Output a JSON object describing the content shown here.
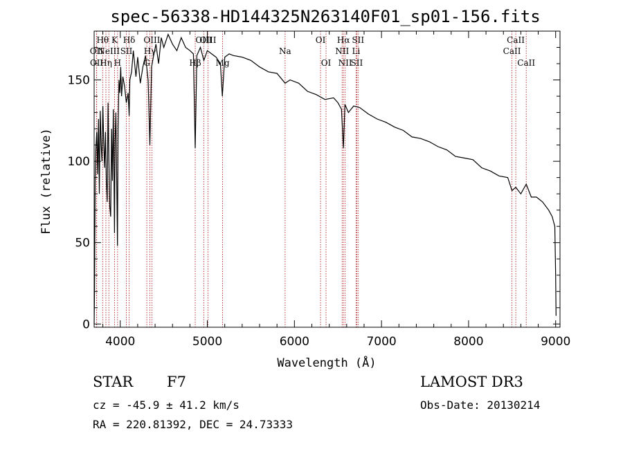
{
  "chart_data": {
    "type": "line",
    "title": "spec-56338-HD144325N263140F01_sp01-156.fits",
    "xlabel": "Wavelength (Å)",
    "ylabel": "Flux (relative)",
    "xlim": [
      3700,
      9050
    ],
    "ylim": [
      -2,
      180
    ],
    "xticks": [
      4000,
      5000,
      6000,
      7000,
      8000,
      9000
    ],
    "yticks": [
      0,
      50,
      100,
      150
    ],
    "series": [
      {
        "name": "flux",
        "x": [
          3700,
          3705,
          3712,
          3720,
          3730,
          3740,
          3750,
          3760,
          3770,
          3780,
          3790,
          3800,
          3810,
          3820,
          3830,
          3840,
          3850,
          3860,
          3870,
          3880,
          3890,
          3900,
          3910,
          3920,
          3930,
          3934,
          3940,
          3950,
          3960,
          3968,
          3975,
          3985,
          3995,
          4005,
          4015,
          4030,
          4050,
          4070,
          4090,
          4102,
          4110,
          4130,
          4150,
          4180,
          4200,
          4230,
          4260,
          4290,
          4320,
          4340,
          4360,
          4380,
          4410,
          4440,
          4470,
          4500,
          4550,
          4600,
          4650,
          4700,
          4750,
          4800,
          4840,
          4861,
          4880,
          4920,
          4960,
          5000,
          5050,
          5100,
          5150,
          5172,
          5200,
          5250,
          5300,
          5400,
          5500,
          5600,
          5700,
          5800,
          5893,
          5950,
          6050,
          6150,
          6250,
          6350,
          6450,
          6500,
          6540,
          6563,
          6580,
          6620,
          6680,
          6750,
          6850,
          6950,
          7050,
          7150,
          7250,
          7350,
          7450,
          7550,
          7650,
          7750,
          7850,
          7950,
          8050,
          8150,
          8250,
          8350,
          8450,
          8498,
          8542,
          8600,
          8662,
          8720,
          8780,
          8850,
          8920,
          8960,
          8990,
          9000,
          9005
        ],
        "y": [
          0,
          22,
          90,
          108,
          118,
          92,
          126,
          80,
          131,
          110,
          100,
          134,
          112,
          96,
          118,
          88,
          75,
          136,
          100,
          72,
          66,
          120,
          88,
          132,
          80,
          56,
          112,
          130,
          86,
          48,
          120,
          150,
          142,
          158,
          140,
          152,
          146,
          136,
          142,
          128,
          150,
          155,
          168,
          152,
          164,
          148,
          158,
          165,
          150,
          110,
          158,
          164,
          172,
          160,
          176,
          170,
          178,
          172,
          168,
          176,
          170,
          168,
          166,
          108,
          165,
          170,
          162,
          168,
          166,
          164,
          160,
          140,
          164,
          166,
          165,
          164,
          162,
          158,
          155,
          154,
          148,
          150,
          148,
          143,
          141,
          138,
          139,
          136,
          132,
          108,
          135,
          130,
          134,
          133,
          129,
          126,
          124,
          121,
          119,
          115,
          114,
          112,
          109,
          107,
          103,
          102,
          101,
          96,
          94,
          91,
          90,
          82,
          84,
          80,
          86,
          78,
          78,
          75,
          70,
          66,
          60,
          30,
          5
        ]
      }
    ],
    "spectral_lines": [
      {
        "label": "Hθ",
        "x": 3798,
        "row": 1
      },
      {
        "label": "OII",
        "x": 3727,
        "row": 2
      },
      {
        "label": "OII",
        "x": 3729,
        "row": 3
      },
      {
        "label": "Hη",
        "x": 3835,
        "row": 3
      },
      {
        "label": "NeIII",
        "x": 3869,
        "row": 2
      },
      {
        "label": "K",
        "x": 3934,
        "row": 1
      },
      {
        "label": "H",
        "x": 3969,
        "row": 3
      },
      {
        "label": "Hδ",
        "x": 4102,
        "row": 1
      },
      {
        "label": "SII",
        "x": 4070,
        "row": 2
      },
      {
        "label": "OIII",
        "x": 4363,
        "row": 1
      },
      {
        "label": "Hγ",
        "x": 4340,
        "row": 2
      },
      {
        "label": "G",
        "x": 4305,
        "row": 3
      },
      {
        "label": "Hβ",
        "x": 4861,
        "row": 3
      },
      {
        "label": "OIII",
        "x": 4959,
        "row": 1
      },
      {
        "label": "OIII",
        "x": 5007,
        "row": 1
      },
      {
        "label": "Mg",
        "x": 5175,
        "row": 3
      },
      {
        "label": "Na",
        "x": 5893,
        "row": 2
      },
      {
        "label": "OI",
        "x": 6300,
        "row": 1
      },
      {
        "label": "OI",
        "x": 6363,
        "row": 3
      },
      {
        "label": "Hα",
        "x": 6563,
        "row": 1
      },
      {
        "label": "NII",
        "x": 6548,
        "row": 2
      },
      {
        "label": "NII",
        "x": 6583,
        "row": 3
      },
      {
        "label": "Li",
        "x": 6708,
        "row": 2
      },
      {
        "label": "SII",
        "x": 6716,
        "row": 3
      },
      {
        "label": "SII",
        "x": 6731,
        "row": 1
      },
      {
        "label": "CaII",
        "x": 8498,
        "row": 2
      },
      {
        "label": "CaII",
        "x": 8542,
        "row": 1
      },
      {
        "label": "CaII",
        "x": 8662,
        "row": 3
      }
    ]
  },
  "info": {
    "class_label": "STAR",
    "subclass": "F7",
    "cz": "cz = -45.9 ± 41.2 km/s",
    "coords": "RA = 220.81392, DEC =  24.73333",
    "survey": "LAMOST DR3",
    "obs_date": "Obs-Date: 20130214"
  }
}
